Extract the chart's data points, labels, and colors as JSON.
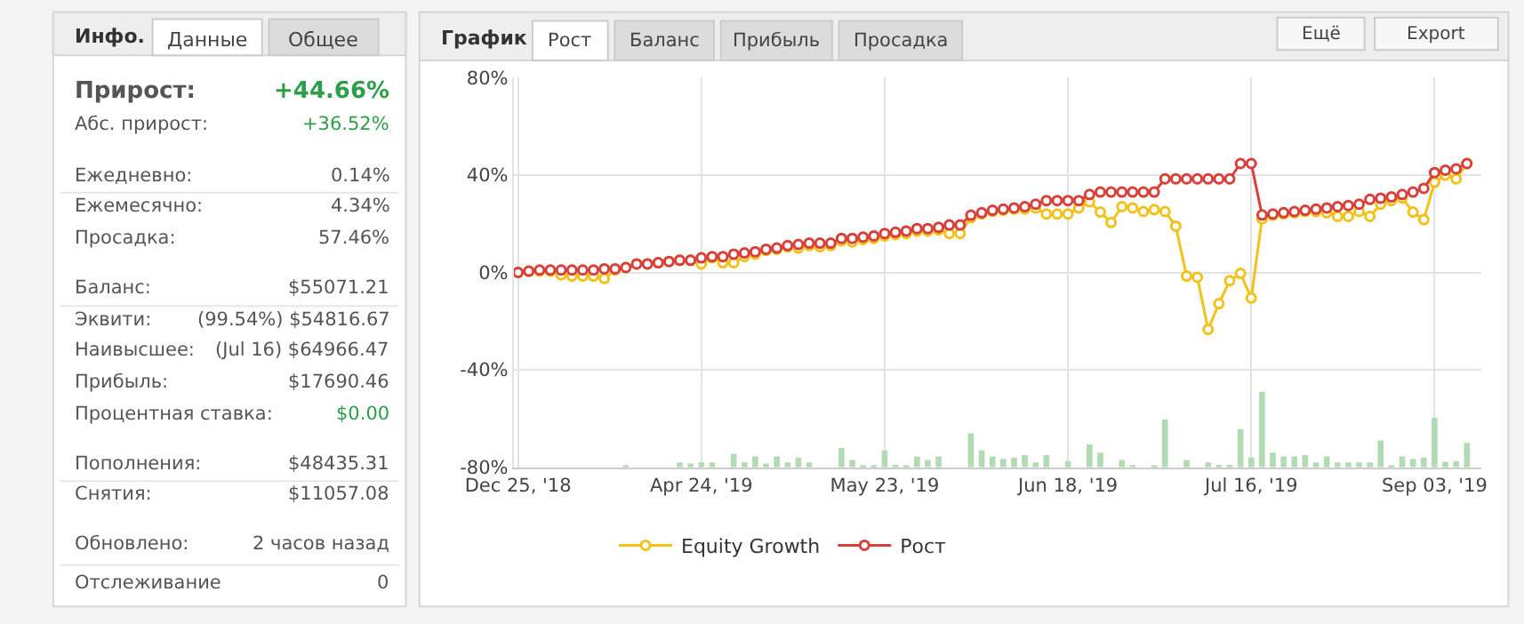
{
  "chart_data": [
    {
      "type": "other",
      "title": "Инфо.",
      "annotations": [
        "Данные",
        "Общее",
        "Прирост:",
        "+44.66%",
        "Абс. прирост:",
        "+36.52%",
        "Ежедневно:",
        "0.14%",
        "Ежемесячно:",
        "4.34%",
        "Просадка:",
        "57.46%",
        "Баланс:",
        "$55071.21",
        "Эквити:",
        "(99.54%) $54816.67",
        "Наивысшее:",
        "(Jul 16) $64966.47",
        "Прибыль:",
        "$17690.46",
        "Процентная ставка:",
        "$0.00",
        "Пополнения:",
        "$48435.31",
        "Снятия:",
        "$11057.08",
        "Обновлено:",
        "2 часов назад",
        "Отслеживание",
        "0"
      ]
    },
    {
      "type": "line",
      "title": "График",
      "annotations": [
        "Рост",
        "Баланс",
        "Прибыль",
        "Просадка",
        "Ещё",
        "Export"
      ],
      "categories": [
        "Dec 25, '18",
        null,
        null,
        null,
        null,
        null,
        null,
        null,
        null,
        null,
        null,
        null,
        null,
        null,
        null,
        null,
        null,
        "Apr 24, '19",
        null,
        null,
        null,
        null,
        null,
        null,
        null,
        null,
        null,
        null,
        null,
        null,
        null,
        null,
        null,
        null,
        "May 23, '19",
        null,
        null,
        null,
        null,
        null,
        null,
        null,
        null,
        null,
        null,
        null,
        null,
        null,
        null,
        null,
        null,
        "Jun 18, '19",
        null,
        null,
        null,
        null,
        null,
        null,
        null,
        null,
        null,
        null,
        null,
        null,
        null,
        null,
        null,
        null,
        "Jul 16, '19",
        null,
        null,
        null,
        null,
        null,
        null,
        null,
        null,
        null,
        null,
        null,
        null,
        null,
        null,
        null,
        null,
        "Sep 03, '19",
        null,
        null,
        null
      ],
      "series": [
        {
          "name": "Equity Growth",
          "color": "#f2c21b",
          "values": [
            0,
            0.5,
            0.5,
            0.5,
            -1,
            -1.5,
            -1.5,
            -1.5,
            -2.5,
            1,
            2,
            3.5,
            3.5,
            4,
            4.5,
            5,
            5,
            3.5,
            6,
            4,
            4,
            6.5,
            7.5,
            9,
            9.5,
            10.5,
            10,
            11,
            10.5,
            11,
            13,
            12.5,
            13.5,
            14,
            15,
            15.5,
            16,
            17,
            17,
            17.5,
            16,
            16,
            22.5,
            24,
            25,
            25.5,
            26,
            26,
            26.5,
            24,
            24,
            24,
            26.5,
            29,
            24.8,
            20.5,
            27,
            26.5,
            25,
            25.8,
            25,
            19,
            -1.5,
            -2,
            -23.4,
            -12.8,
            -3.4,
            -0.4,
            -10.5,
            22,
            23.5,
            24,
            24.5,
            25,
            25,
            24.5,
            23,
            23,
            25,
            23,
            28,
            29.5,
            30.6,
            24.8,
            21.7,
            37,
            40,
            38.4,
            44.7
          ]
        },
        {
          "name": "Рост",
          "color": "#d9403b",
          "values": [
            0,
            0.5,
            1,
            1,
            1,
            1,
            1,
            1,
            1.5,
            1.5,
            2,
            3.5,
            3.5,
            4,
            4.5,
            5,
            5,
            6,
            6.5,
            6.5,
            7.5,
            8,
            8.5,
            9.5,
            10,
            11,
            11.5,
            12,
            12,
            12,
            14,
            14,
            14.5,
            15,
            16,
            16.5,
            17,
            18,
            18,
            18.5,
            19.5,
            19.5,
            23.5,
            24.5,
            25.5,
            26,
            26.5,
            27,
            28,
            29.5,
            29.5,
            29.5,
            29.5,
            32,
            33,
            33,
            33,
            33,
            33,
            33,
            38.4,
            38.4,
            38.4,
            38.4,
            38.4,
            38.4,
            38.4,
            44.7,
            44.7,
            23.6,
            24,
            24.5,
            25,
            25.5,
            26,
            26.5,
            27,
            27.5,
            28,
            30,
            30.5,
            31,
            32,
            33,
            34.5,
            41,
            42,
            42.5,
            44.7
          ]
        },
        {
          "type": "bar",
          "color": "#b3dbb3",
          "base": [
            null,
            null,
            null,
            null,
            null,
            null,
            null,
            null,
            null,
            null,
            -80,
            null,
            null,
            null,
            null,
            -80,
            -80,
            -80,
            -80,
            null,
            -80,
            -80,
            -80,
            -80,
            -80,
            -80,
            -80,
            -80,
            null,
            null,
            -80,
            -80,
            -80,
            -80,
            -80,
            -80,
            -80,
            -80,
            -80,
            -80,
            null,
            null,
            -80,
            -80,
            -80,
            -80,
            -80,
            -80,
            -80,
            -80,
            null,
            -80,
            null,
            -80,
            -80,
            null,
            -80,
            -80,
            null,
            -80,
            -80,
            null,
            -80,
            null,
            -80,
            -80,
            -80,
            -80,
            -80,
            -80,
            -80,
            -80,
            -80,
            -80,
            -80,
            -80,
            -80,
            -80,
            -80,
            -80,
            -80,
            -80,
            -80,
            -80,
            -80,
            -80,
            -80,
            -80,
            -80
          ],
          "values": [
            null,
            null,
            null,
            null,
            null,
            null,
            null,
            null,
            null,
            null,
            0.5,
            null,
            null,
            null,
            null,
            2,
            1.5,
            2,
            2,
            null,
            5.6,
            2,
            4.5,
            1.5,
            4.5,
            2,
            4,
            2,
            null,
            null,
            8,
            3,
            0.5,
            0.5,
            7,
            1,
            0.5,
            4.5,
            3,
            4.5,
            null,
            null,
            14,
            7,
            4.5,
            3.5,
            4,
            5,
            2,
            5,
            null,
            2.5,
            null,
            9.4,
            6,
            null,
            3,
            0.5,
            null,
            0.5,
            19.7,
            null,
            3,
            null,
            2,
            1,
            1,
            15.7,
            4,
            31,
            6,
            4.5,
            4.5,
            5,
            2,
            4.5,
            2,
            2,
            2,
            2,
            11,
            0.5,
            4.5,
            3.5,
            4,
            20.4,
            2.3,
            2.5,
            10
          ]
        }
      ],
      "ylim": [
        -80,
        80
      ],
      "yticks": [
        {
          "value": 80,
          "label": "80%"
        },
        {
          "value": 40,
          "label": "40%"
        },
        {
          "value": 0,
          "label": "0%"
        },
        {
          "value": -40,
          "label": "-40%"
        },
        {
          "value": -80,
          "label": "-80%"
        }
      ],
      "grid": true,
      "legend": "bottom",
      "marker": "circle",
      "line_style": "solid"
    }
  ]
}
